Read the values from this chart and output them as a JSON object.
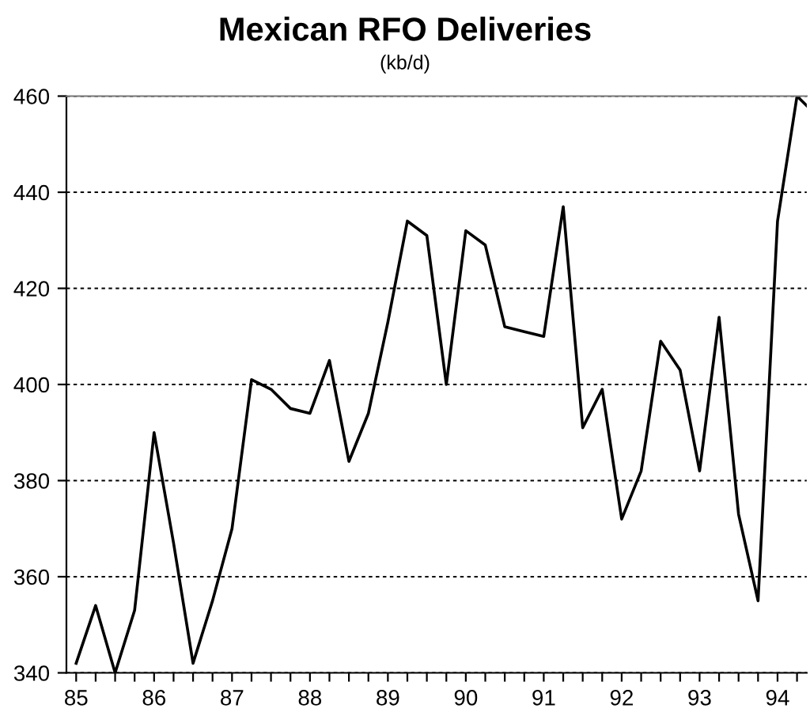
{
  "chart_data": {
    "type": "line",
    "title": "Mexican RFO Deliveries",
    "subtitle": "(kb/d)",
    "x": [
      85,
      85.25,
      85.5,
      85.75,
      86,
      86.25,
      86.5,
      86.75,
      87,
      87.25,
      87.5,
      87.75,
      88,
      88.25,
      88.5,
      88.75,
      89,
      89.25,
      89.5,
      89.75,
      90,
      90.25,
      90.5,
      90.75,
      91,
      91.25,
      91.5,
      91.75,
      92,
      92.25,
      92.5,
      92.75,
      93,
      93.25,
      93.5,
      93.75,
      94,
      94.25,
      94.375
    ],
    "series": [
      {
        "color": "#000000",
        "values": [
          342,
          354,
          340,
          353,
          390,
          367,
          342,
          355,
          370,
          401,
          399,
          395,
          394,
          405,
          384,
          394,
          413,
          434,
          431,
          400,
          432,
          429,
          412,
          411,
          410,
          437,
          391,
          399,
          372,
          382,
          409,
          403,
          382,
          414,
          373,
          355,
          434,
          460,
          458
        ]
      }
    ],
    "xlim": [
      84.875,
      94.375
    ],
    "ylim": [
      340,
      460
    ],
    "xticks": [
      85,
      {
        "value": 85.25,
        "label": null
      },
      {
        "value": 85.5,
        "label": null
      },
      {
        "value": 85.75,
        "label": null
      },
      86,
      {
        "value": 86.25,
        "label": null
      },
      {
        "value": 86.5,
        "label": null
      },
      {
        "value": 86.75,
        "label": null
      },
      87,
      {
        "value": 87.25,
        "label": null
      },
      {
        "value": 87.5,
        "label": null
      },
      {
        "value": 87.75,
        "label": null
      },
      88,
      {
        "value": 88.25,
        "label": null
      },
      {
        "value": 88.5,
        "label": null
      },
      {
        "value": 88.75,
        "label": null
      },
      89,
      {
        "value": 89.25,
        "label": null
      },
      {
        "value": 89.5,
        "label": null
      },
      {
        "value": 89.75,
        "label": null
      },
      90,
      {
        "value": 90.25,
        "label": null
      },
      {
        "value": 90.5,
        "label": null
      },
      {
        "value": 90.75,
        "label": null
      },
      91,
      {
        "value": 91.25,
        "label": null
      },
      {
        "value": 91.5,
        "label": null
      },
      {
        "value": 91.75,
        "label": null
      },
      92,
      {
        "value": 92.25,
        "label": null
      },
      {
        "value": 92.5,
        "label": null
      },
      {
        "value": 92.75,
        "label": null
      },
      93,
      {
        "value": 93.25,
        "label": null
      },
      {
        "value": 93.5,
        "label": null
      },
      {
        "value": 93.75,
        "label": null
      },
      94,
      {
        "value": 94.25,
        "label": null
      }
    ],
    "yticks": [
      340,
      360,
      380,
      400,
      420,
      440,
      460
    ],
    "grid": "y",
    "marker": "none",
    "line_style": "solid",
    "legend": false
  }
}
